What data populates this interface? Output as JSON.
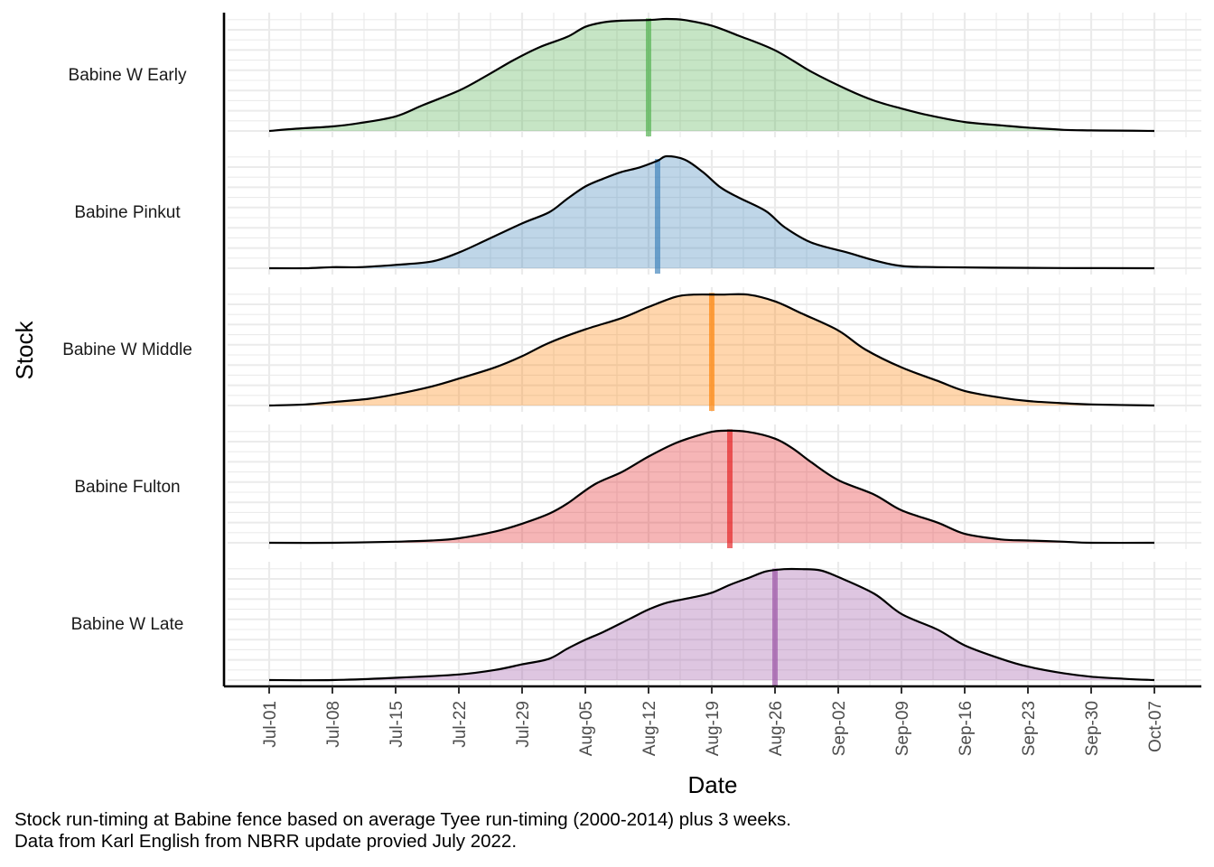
{
  "chart_data": {
    "type": "area",
    "title": "",
    "xlabel": "Date",
    "ylabel": "Stock",
    "x_ticks": [
      "Jul-01",
      "Jul-08",
      "Jul-15",
      "Jul-22",
      "Jul-29",
      "Aug-05",
      "Aug-12",
      "Aug-19",
      "Aug-26",
      "Sep-02",
      "Sep-09",
      "Sep-16",
      "Sep-23",
      "Sep-30",
      "Oct-07"
    ],
    "x_range_days": [
      0,
      98
    ],
    "x_tick_step_days": 7,
    "grid": true,
    "series": [
      {
        "name": "Babine W Early",
        "color": "#4daf4a",
        "median_day": 42,
        "density": [
          [
            0,
            0.0
          ],
          [
            3,
            0.02
          ],
          [
            7,
            0.04
          ],
          [
            10,
            0.07
          ],
          [
            14,
            0.13
          ],
          [
            17,
            0.23
          ],
          [
            21,
            0.36
          ],
          [
            24,
            0.49
          ],
          [
            27,
            0.63
          ],
          [
            30,
            0.75
          ],
          [
            33,
            0.84
          ],
          [
            35,
            0.93
          ],
          [
            37,
            0.97
          ],
          [
            39,
            0.985
          ],
          [
            42,
            0.99
          ],
          [
            44,
            1.0
          ],
          [
            46,
            0.99
          ],
          [
            49,
            0.94
          ],
          [
            52,
            0.85
          ],
          [
            56,
            0.72
          ],
          [
            60,
            0.53
          ],
          [
            64,
            0.37
          ],
          [
            67,
            0.27
          ],
          [
            70,
            0.2
          ],
          [
            73,
            0.14
          ],
          [
            77,
            0.08
          ],
          [
            81,
            0.05
          ],
          [
            84,
            0.03
          ],
          [
            88,
            0.01
          ],
          [
            91,
            0.005
          ],
          [
            94,
            0.003
          ],
          [
            98,
            0.0
          ]
        ]
      },
      {
        "name": "Babine Pinkut",
        "color": "#377eb8",
        "median_day": 43,
        "density": [
          [
            0,
            0.0
          ],
          [
            4,
            0.0
          ],
          [
            7,
            0.01
          ],
          [
            10,
            0.01
          ],
          [
            14,
            0.03
          ],
          [
            18,
            0.06
          ],
          [
            21,
            0.14
          ],
          [
            24,
            0.25
          ],
          [
            28,
            0.4
          ],
          [
            31,
            0.5
          ],
          [
            33,
            0.62
          ],
          [
            35,
            0.73
          ],
          [
            37,
            0.8
          ],
          [
            39,
            0.86
          ],
          [
            41,
            0.9
          ],
          [
            43,
            0.96
          ],
          [
            44,
            1.0
          ],
          [
            46,
            0.97
          ],
          [
            48,
            0.86
          ],
          [
            50,
            0.72
          ],
          [
            52,
            0.63
          ],
          [
            55,
            0.51
          ],
          [
            57,
            0.37
          ],
          [
            60,
            0.23
          ],
          [
            64,
            0.14
          ],
          [
            67,
            0.07
          ],
          [
            70,
            0.02
          ],
          [
            74,
            0.01
          ],
          [
            80,
            0.005
          ],
          [
            88,
            0.002
          ],
          [
            98,
            0.0
          ]
        ]
      },
      {
        "name": "Babine W Middle",
        "color": "#ff7f00",
        "median_day": 49,
        "density": [
          [
            0,
            0.0
          ],
          [
            4,
            0.01
          ],
          [
            7,
            0.03
          ],
          [
            11,
            0.06
          ],
          [
            14,
            0.1
          ],
          [
            18,
            0.17
          ],
          [
            21,
            0.24
          ],
          [
            25,
            0.34
          ],
          [
            28,
            0.44
          ],
          [
            31,
            0.56
          ],
          [
            35,
            0.68
          ],
          [
            39,
            0.78
          ],
          [
            42,
            0.88
          ],
          [
            45,
            0.97
          ],
          [
            47,
            0.99
          ],
          [
            50,
            0.99
          ],
          [
            53,
            0.99
          ],
          [
            56,
            0.93
          ],
          [
            59,
            0.82
          ],
          [
            63,
            0.67
          ],
          [
            66,
            0.5
          ],
          [
            70,
            0.34
          ],
          [
            74,
            0.22
          ],
          [
            77,
            0.13
          ],
          [
            81,
            0.07
          ],
          [
            84,
            0.04
          ],
          [
            88,
            0.02
          ],
          [
            91,
            0.01
          ],
          [
            98,
            0.0
          ]
        ]
      },
      {
        "name": "Babine Fulton",
        "color": "#e41a1c",
        "median_day": 51,
        "density": [
          [
            0,
            0.0
          ],
          [
            7,
            0.0
          ],
          [
            14,
            0.01
          ],
          [
            18,
            0.02
          ],
          [
            21,
            0.04
          ],
          [
            25,
            0.1
          ],
          [
            28,
            0.17
          ],
          [
            31,
            0.26
          ],
          [
            33,
            0.35
          ],
          [
            36,
            0.52
          ],
          [
            39,
            0.63
          ],
          [
            42,
            0.77
          ],
          [
            45,
            0.89
          ],
          [
            48,
            0.97
          ],
          [
            50,
            1.0
          ],
          [
            53,
            0.99
          ],
          [
            56,
            0.93
          ],
          [
            58,
            0.84
          ],
          [
            60,
            0.72
          ],
          [
            63,
            0.56
          ],
          [
            67,
            0.43
          ],
          [
            70,
            0.29
          ],
          [
            74,
            0.18
          ],
          [
            77,
            0.08
          ],
          [
            81,
            0.03
          ],
          [
            84,
            0.02
          ],
          [
            88,
            0.01
          ],
          [
            91,
            0.0
          ],
          [
            98,
            0.0
          ]
        ]
      },
      {
        "name": "Babine W Late",
        "color": "#984ea3",
        "median_day": 56,
        "density": [
          [
            0,
            0.0
          ],
          [
            7,
            0.0
          ],
          [
            14,
            0.02
          ],
          [
            21,
            0.05
          ],
          [
            25,
            0.09
          ],
          [
            28,
            0.14
          ],
          [
            31,
            0.19
          ],
          [
            33,
            0.28
          ],
          [
            35,
            0.36
          ],
          [
            37,
            0.43
          ],
          [
            40,
            0.55
          ],
          [
            42,
            0.63
          ],
          [
            44,
            0.69
          ],
          [
            47,
            0.74
          ],
          [
            49,
            0.78
          ],
          [
            51,
            0.85
          ],
          [
            53,
            0.91
          ],
          [
            55,
            0.97
          ],
          [
            57,
            0.99
          ],
          [
            59,
            0.99
          ],
          [
            61,
            0.98
          ],
          [
            63,
            0.92
          ],
          [
            67,
            0.77
          ],
          [
            70,
            0.59
          ],
          [
            74,
            0.45
          ],
          [
            77,
            0.31
          ],
          [
            81,
            0.19
          ],
          [
            84,
            0.12
          ],
          [
            88,
            0.06
          ],
          [
            91,
            0.03
          ],
          [
            95,
            0.01
          ],
          [
            98,
            0.0
          ]
        ]
      }
    ]
  },
  "caption": {
    "line1": "Stock run-timing at Babine fence based on average Tyee run-timing (2000-2014) plus 3 weeks.",
    "line2": "Data from Karl English from NBRR update provied July 2022."
  }
}
